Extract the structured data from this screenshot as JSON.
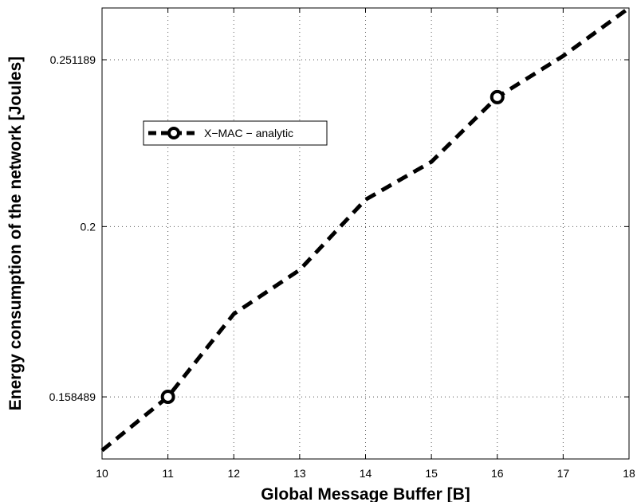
{
  "chart_data": {
    "type": "line",
    "xlabel": "Global Message Buffer [B]",
    "ylabel": "Energy consumption of the network [Joules]",
    "xlim": [
      10,
      18
    ],
    "ylim": [
      0.1456,
      0.2696
    ],
    "y_scale": "log",
    "grid": true,
    "legend_position": "upper-left",
    "x_ticks": [
      10,
      11,
      12,
      13,
      14,
      15,
      16,
      17,
      18
    ],
    "x_tick_labels": [
      "10",
      "11",
      "12",
      "13",
      "14",
      "15",
      "16",
      "17",
      "18"
    ],
    "y_ticks": [
      0.158489,
      0.2,
      0.251189
    ],
    "y_tick_labels": [
      "0.158489",
      "0.2",
      "0.251189"
    ],
    "series": [
      {
        "name": "X−MAC − analytic",
        "color": "#000000",
        "line_style": "dashed",
        "marker": "circle",
        "marker_x": [
          11,
          16
        ],
        "x": [
          10,
          11,
          12,
          13,
          14,
          15,
          16,
          17,
          18
        ],
        "y": [
          0.1473,
          0.1585,
          0.1775,
          0.1885,
          0.2075,
          0.2185,
          0.2387,
          0.2525,
          0.2696
        ]
      }
    ]
  }
}
